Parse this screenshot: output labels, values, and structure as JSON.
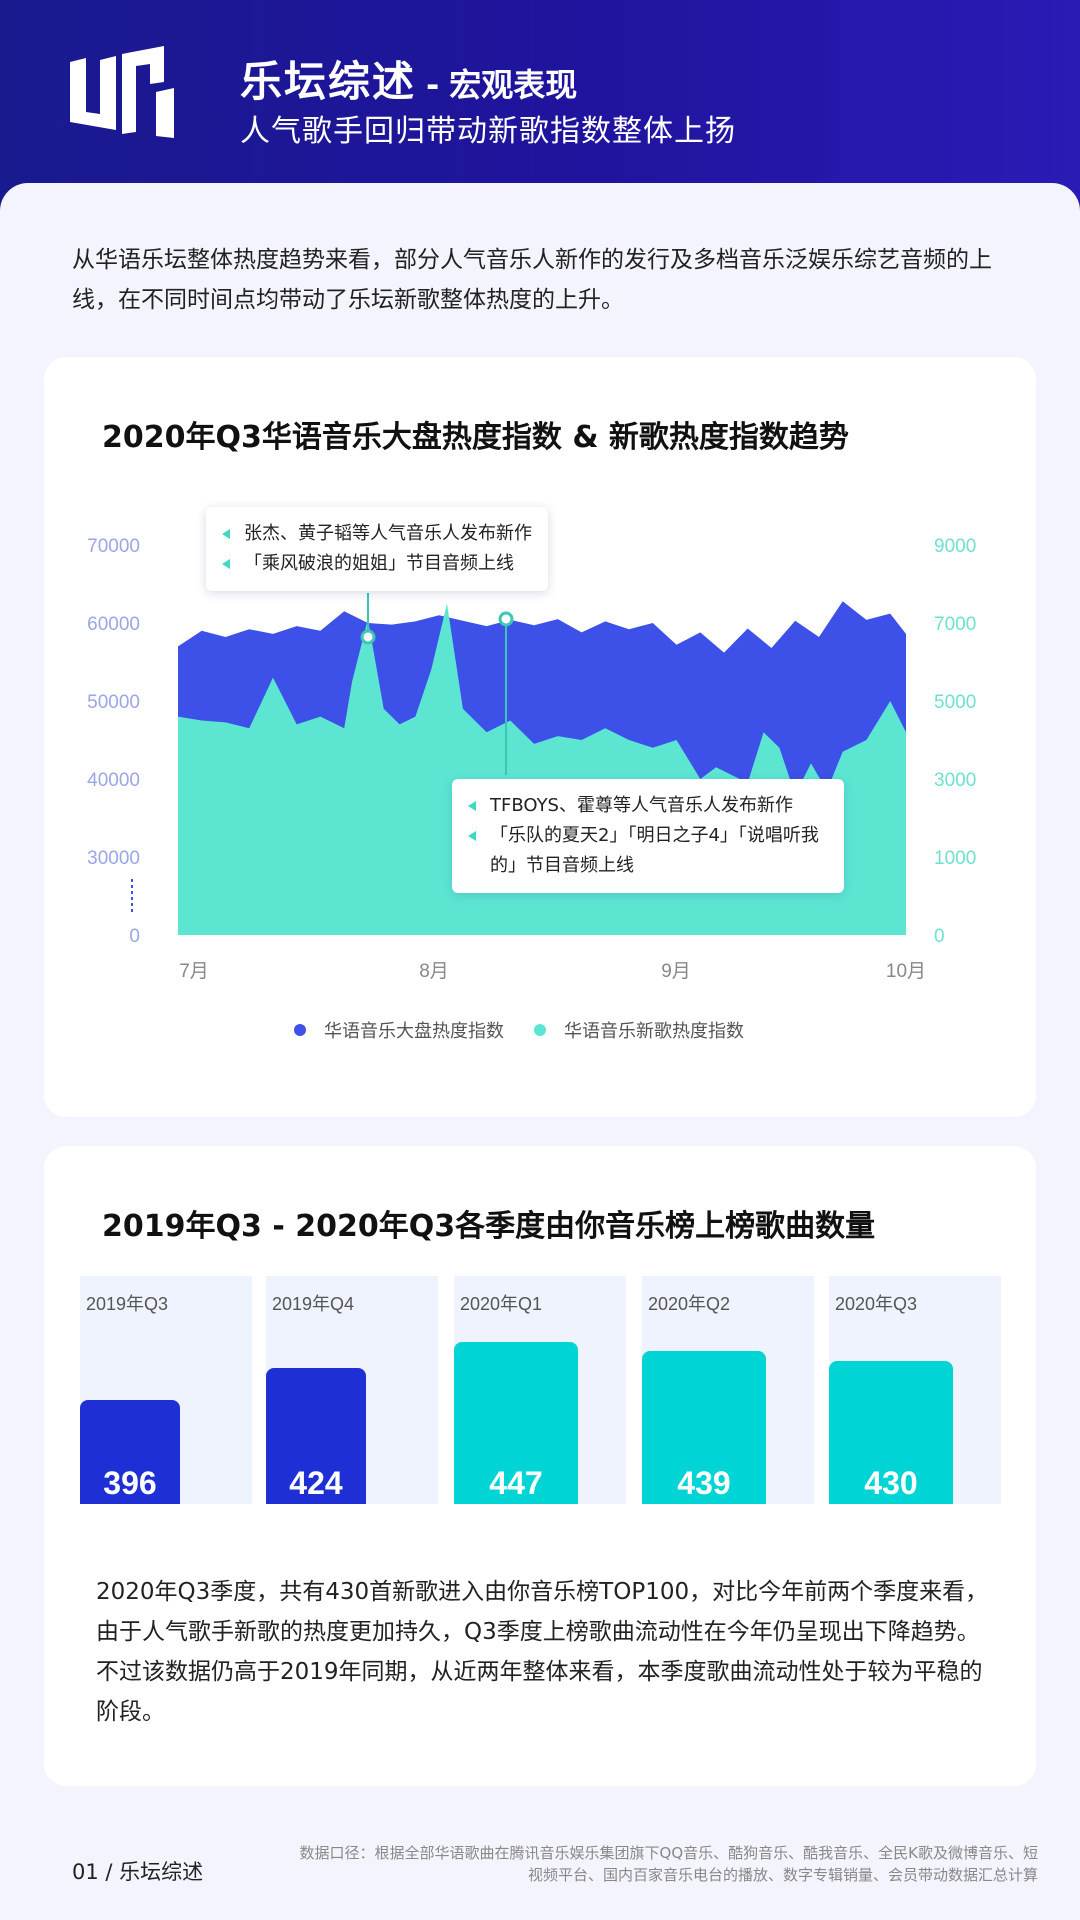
{
  "header": {
    "title": "乐坛综述",
    "dash": "-",
    "title_suffix": "宏观表现",
    "subtitle": "人气歌手回归带动新歌指数整体上扬"
  },
  "intro": "从华语乐坛整体热度趋势来看，部分人气音乐人新作的发行及多档音乐泛娱乐综艺音频的上线，在不同时间点均带动了乐坛新歌整体热度的上升。",
  "colors": {
    "primary": "#3d50e8",
    "secondary": "#5ce6d2",
    "bar_dark": "#1f2fd6",
    "bar_teal": "#00d4d4"
  },
  "chart_data": [
    {
      "type": "area",
      "title": "2020年Q3华语音乐大盘热度指数 & 新歌热度指数趋势",
      "x_ticks": [
        "7月",
        "8月",
        "9月",
        "10月"
      ],
      "y_left_ticks": [
        "70000",
        "60000",
        "50000",
        "40000",
        "30000",
        "0"
      ],
      "y_right_ticks": [
        "9000",
        "7000",
        "5000",
        "3000",
        "1000",
        "0"
      ],
      "legend_position": "bottom",
      "series": [
        {
          "name": "华语音乐大盘热度指数",
          "axis": "left",
          "color": "#3d50e8",
          "x": [
            0,
            3,
            6,
            9,
            12,
            15,
            18,
            21,
            24,
            27,
            30,
            33,
            36,
            39,
            42,
            45,
            48,
            51,
            54,
            57,
            60,
            63,
            66,
            69,
            72,
            75,
            78,
            81,
            84,
            87,
            90,
            92
          ],
          "values": [
            57000,
            59000,
            58200,
            59200,
            58600,
            59600,
            59000,
            61500,
            60000,
            59800,
            60200,
            61000,
            60300,
            59600,
            60400,
            59700,
            60500,
            58800,
            60200,
            59200,
            60000,
            57200,
            58800,
            56200,
            59300,
            56800,
            60300,
            58200,
            62800,
            60400,
            61200,
            58600
          ]
        },
        {
          "name": "华语音乐新歌热度指数",
          "axis": "right",
          "color": "#5ce6d2",
          "x": [
            0,
            3,
            6,
            9,
            12,
            15,
            18,
            21,
            22,
            24,
            26,
            28,
            30,
            32,
            34,
            36,
            39,
            42,
            45,
            48,
            51,
            54,
            57,
            60,
            63,
            66,
            68,
            70,
            72,
            74,
            76,
            78,
            80,
            82,
            84,
            87,
            90,
            92
          ],
          "values": [
            4600,
            4500,
            4450,
            4300,
            5600,
            4400,
            4600,
            4300,
            5500,
            7100,
            4800,
            4400,
            4600,
            5800,
            7500,
            4800,
            4200,
            4500,
            3900,
            4100,
            4000,
            4300,
            4000,
            3800,
            4000,
            3000,
            3300,
            3100,
            2900,
            4200,
            3800,
            2600,
            3400,
            2700,
            3700,
            4000,
            5000,
            4200
          ]
        }
      ],
      "annotations": [
        {
          "lines": [
            "张杰、黄子韬等人气音乐人发布新作",
            "「乘风破浪的姐姐」节目音频上线"
          ]
        },
        {
          "lines": [
            "TFBOYS、霍尊等人气音乐人发布新作",
            "「乐队的夏天2」「明日之子4」「说唱听我的」节目音频上线"
          ]
        }
      ]
    },
    {
      "type": "bar",
      "title": "2019年Q3 - 2020年Q3各季度由你音乐榜上榜歌曲数量",
      "categories": [
        "2019年Q3",
        "2019年Q4",
        "2020年Q1",
        "2020年Q2",
        "2020年Q3"
      ],
      "values": [
        396,
        424,
        447,
        439,
        430
      ],
      "colors": [
        "#1f2fd6",
        "#1f2fd6",
        "#00d4d4",
        "#00d4d4",
        "#00d4d4"
      ]
    }
  ],
  "summary": "2020年Q3季度，共有430首新歌进入由你音乐榜TOP100，对比今年前两个季度来看，由于人气歌手新歌的热度更加持久，Q3季度上榜歌曲流动性在今年仍呈现出下降趋势。不过该数据仍高于2019年同期，从近两年整体来看，本季度歌曲流动性处于较为平稳的阶段。",
  "footer": {
    "page": "01 / 乐坛综述",
    "note": "数据口径：根据全部华语歌曲在腾讯音乐娱乐集团旗下QQ音乐、酷狗音乐、酷我音乐、全民K歌及微博音乐、短视频平台、国内百家音乐电台的播放、数字专辑销量、会员带动数据汇总计算"
  }
}
